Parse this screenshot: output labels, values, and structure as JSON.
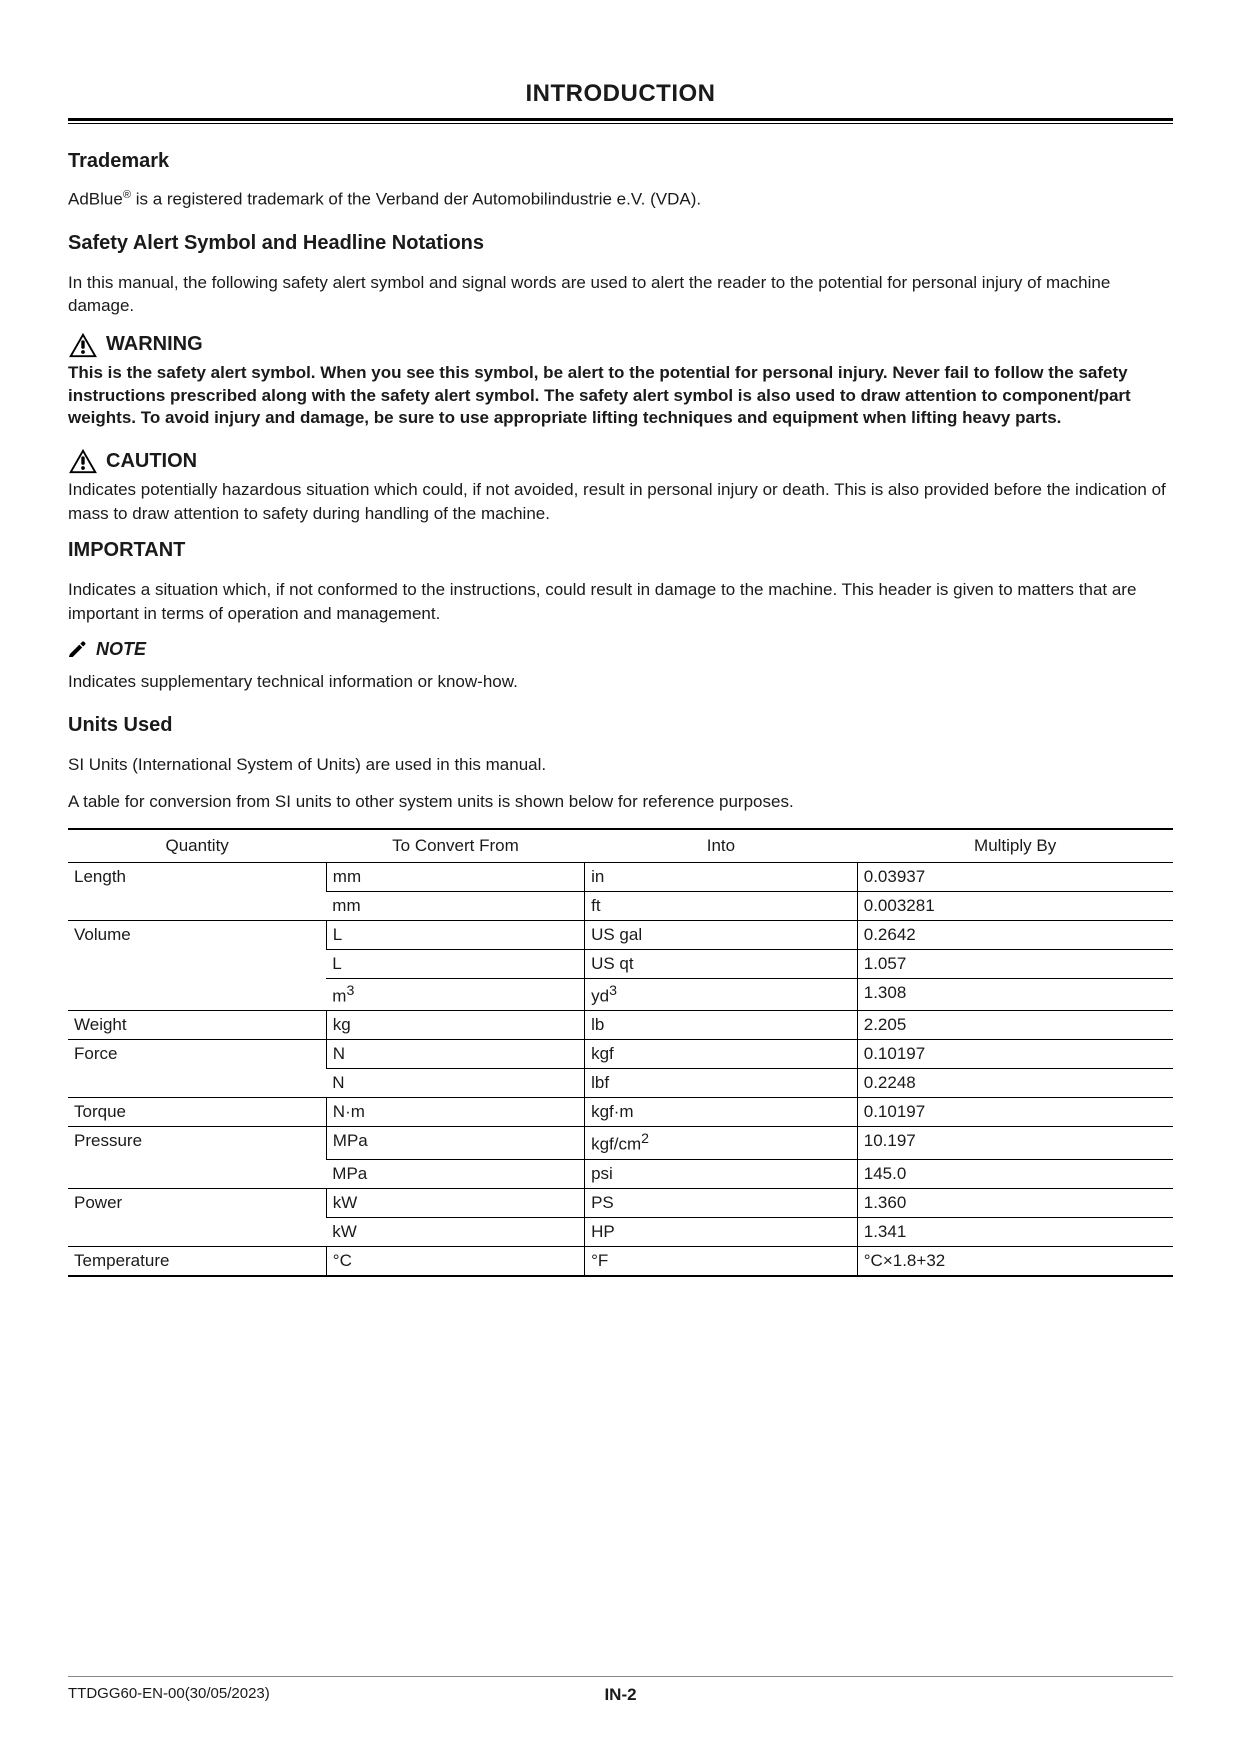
{
  "page_title": "INTRODUCTION",
  "trademark": {
    "heading": "Trademark",
    "prefix": "AdBlue",
    "reg": "®",
    "suffix": " is a registered trademark of the Verband der Automobilindustrie e.V. (VDA)."
  },
  "safety": {
    "heading": "Safety Alert Symbol and Headline Notations",
    "intro": "In this manual, the following safety alert symbol and signal words are used to alert the reader to the potential for personal injury of machine damage."
  },
  "warning": {
    "label": "WARNING",
    "text": "This is the safety alert symbol. When you see this symbol, be alert to the potential for personal injury. Never fail to follow the safety instructions prescribed along with the safety alert symbol. The safety alert symbol is also used to draw attention to component/part weights. To avoid injury and damage, be sure to use appropriate lifting techniques and equipment when lifting heavy parts."
  },
  "caution": {
    "label": "CAUTION",
    "text": "Indicates potentially hazardous situation which could, if not avoided, result in personal injury or death. This is also provided before the indication of mass to draw attention to safety during handling of the machine."
  },
  "important": {
    "heading": "IMPORTANT",
    "text": "Indicates a situation which, if not conformed to the instructions, could result in damage to the machine. This header is given to matters that are important in terms of operation and management."
  },
  "note": {
    "label": "NOTE",
    "text": "Indicates supplementary technical information or know-how."
  },
  "units": {
    "heading": "Units Used",
    "intro1": "SI Units (International System of Units) are used in this manual.",
    "intro2": "A table for conversion from SI units to other system units is shown below for reference purposes.",
    "columns": [
      "Quantity",
      "To Convert From",
      "Into",
      "Multiply By"
    ],
    "rows": [
      {
        "q": "Length",
        "from": "mm",
        "into": "in",
        "mult": "0.03937",
        "rowspan": 2
      },
      {
        "q": "",
        "from": "mm",
        "into": "ft",
        "mult": "0.003281"
      },
      {
        "q": "Volume",
        "from": "L",
        "into": "US gal",
        "mult": "0.2642",
        "rowspan": 3
      },
      {
        "q": "",
        "from": "L",
        "into": "US qt",
        "mult": "1.057"
      },
      {
        "q": "",
        "from": "m³",
        "into": "yd³",
        "mult": "1.308"
      },
      {
        "q": "Weight",
        "from": "kg",
        "into": "lb",
        "mult": "2.205",
        "rowspan": 1
      },
      {
        "q": "Force",
        "from": "N",
        "into": "kgf",
        "mult": "0.10197",
        "rowspan": 2
      },
      {
        "q": "",
        "from": "N",
        "into": "lbf",
        "mult": "0.2248"
      },
      {
        "q": "Torque",
        "from": "N·m",
        "into": "kgf·m",
        "mult": "0.10197",
        "rowspan": 1
      },
      {
        "q": "Pressure",
        "from": "MPa",
        "into": "kgf/cm²",
        "mult": "10.197",
        "rowspan": 2
      },
      {
        "q": "",
        "from": "MPa",
        "into": "psi",
        "mult": "145.0"
      },
      {
        "q": "Power",
        "from": "kW",
        "into": "PS",
        "mult": "1.360",
        "rowspan": 2
      },
      {
        "q": "",
        "from": "kW",
        "into": "HP",
        "mult": "1.341"
      },
      {
        "q": "Temperature",
        "from": "°C",
        "into": "°F",
        "mult": "°C×1.8+32",
        "rowspan": 1
      }
    ]
  },
  "footer": {
    "left": "TTDGG60-EN-00(30/05/2023)",
    "center": "IN-2"
  }
}
